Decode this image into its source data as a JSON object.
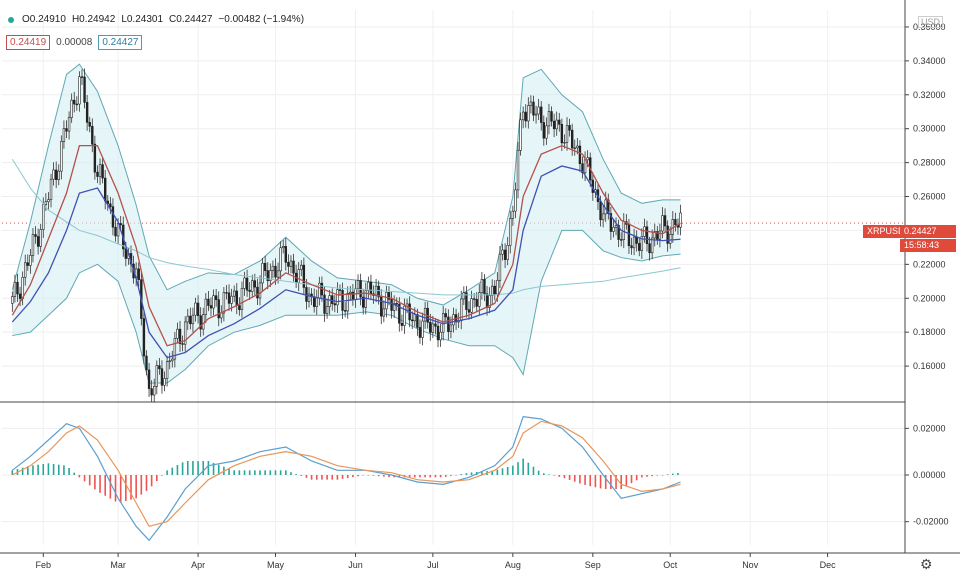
{
  "header": {
    "open": "O0.24910",
    "high": "H0.24942",
    "low": "L0.24301",
    "close": "C0.24427",
    "change": "−0.00482 (−1.94%)",
    "ma_red": "0.24419",
    "ma_mid": "0.00008",
    "ma_blue": "0.24427",
    "currency": "USD"
  },
  "price_tag": {
    "symbol": "XRPUSD",
    "price": "0.24427",
    "countdown": "15:58:43"
  },
  "colors": {
    "up": "#26a69a",
    "down": "#ef5350",
    "ma_red": "#b5504a",
    "ma_blue": "#3f51b5",
    "band": "#5fa8b5",
    "band_fill": "#d6eef2"
  },
  "chart_data": [
    {
      "type": "candlestick",
      "title": "",
      "x": [
        "2020-01-20",
        "2020-01-27",
        "2020-02-03",
        "2020-02-10",
        "2020-02-15",
        "2020-02-22",
        "2020-03-01",
        "2020-03-08",
        "2020-03-13",
        "2020-03-20",
        "2020-03-27",
        "2020-04-05",
        "2020-04-15",
        "2020-04-25",
        "2020-05-05",
        "2020-05-15",
        "2020-05-25",
        "2020-06-05",
        "2020-06-15",
        "2020-06-25",
        "2020-07-05",
        "2020-07-15",
        "2020-07-25",
        "2020-08-01",
        "2020-08-05",
        "2020-08-12",
        "2020-08-20",
        "2020-08-28",
        "2020-09-05",
        "2020-09-12",
        "2020-09-20",
        "2020-09-28",
        "2020-10-05"
      ],
      "series": [
        {
          "name": "price",
          "values": [
            0.197,
            0.225,
            0.26,
            0.3,
            0.33,
            0.275,
            0.238,
            0.215,
            0.145,
            0.16,
            0.185,
            0.195,
            0.2,
            0.21,
            0.225,
            0.2,
            0.198,
            0.205,
            0.195,
            0.186,
            0.182,
            0.198,
            0.205,
            0.25,
            0.315,
            0.305,
            0.3,
            0.282,
            0.25,
            0.238,
            0.232,
            0.24,
            0.2443
          ]
        },
        {
          "name": "ma_red",
          "values": [
            0.19,
            0.208,
            0.235,
            0.262,
            0.29,
            0.29,
            0.262,
            0.23,
            0.195,
            0.172,
            0.175,
            0.188,
            0.195,
            0.203,
            0.215,
            0.208,
            0.202,
            0.203,
            0.2,
            0.192,
            0.186,
            0.19,
            0.197,
            0.22,
            0.26,
            0.285,
            0.29,
            0.285,
            0.262,
            0.246,
            0.24,
            0.238,
            0.2442
          ]
        },
        {
          "name": "ma_blue",
          "values": [
            0.186,
            0.198,
            0.215,
            0.24,
            0.262,
            0.265,
            0.245,
            0.212,
            0.18,
            0.165,
            0.168,
            0.178,
            0.185,
            0.194,
            0.205,
            0.201,
            0.198,
            0.2,
            0.197,
            0.19,
            0.185,
            0.188,
            0.193,
            0.205,
            0.24,
            0.272,
            0.278,
            0.275,
            0.255,
            0.24,
            0.235,
            0.234,
            0.2348
          ]
        },
        {
          "name": "upper_band",
          "values": [
            0.205,
            0.245,
            0.29,
            0.332,
            0.338,
            0.322,
            0.29,
            0.255,
            0.225,
            0.205,
            0.21,
            0.215,
            0.214,
            0.222,
            0.236,
            0.222,
            0.212,
            0.21,
            0.208,
            0.2,
            0.196,
            0.205,
            0.215,
            0.26,
            0.33,
            0.335,
            0.32,
            0.31,
            0.282,
            0.262,
            0.256,
            0.258,
            0.258
          ]
        },
        {
          "name": "lower_band",
          "values": [
            0.178,
            0.18,
            0.19,
            0.2,
            0.215,
            0.22,
            0.21,
            0.18,
            0.15,
            0.15,
            0.158,
            0.172,
            0.18,
            0.184,
            0.19,
            0.19,
            0.19,
            0.192,
            0.19,
            0.182,
            0.176,
            0.172,
            0.172,
            0.165,
            0.155,
            0.21,
            0.24,
            0.24,
            0.228,
            0.224,
            0.222,
            0.225,
            0.226
          ]
        },
        {
          "name": "long_ma",
          "values": [
            0.282,
            0.265,
            0.252,
            0.245,
            0.24,
            0.237,
            0.232,
            0.228,
            0.224,
            0.221,
            0.219,
            0.217,
            0.214,
            0.212,
            0.21,
            0.208,
            0.206,
            0.205,
            0.204,
            0.203,
            0.202,
            0.202,
            0.202,
            0.203,
            0.205,
            0.207,
            0.208,
            0.209,
            0.21,
            0.212,
            0.214,
            0.216,
            0.218
          ]
        }
      ],
      "ylim": [
        0.14,
        0.37
      ],
      "y_ticks": [
        "0.36000",
        "0.34000",
        "0.32000",
        "0.30000",
        "0.28000",
        "0.26000",
        "0.24000",
        "0.22000",
        "0.20000",
        "0.18000",
        "0.16000"
      ],
      "y_tick_values": [
        0.36,
        0.34,
        0.32,
        0.3,
        0.28,
        0.26,
        0.24,
        0.22,
        0.2,
        0.18,
        0.16
      ],
      "grid": true
    },
    {
      "type": "macd",
      "title": "",
      "series": [
        {
          "name": "macd",
          "values": [
            0.002,
            0.008,
            0.015,
            0.022,
            0.02,
            0.008,
            -0.01,
            -0.022,
            -0.028,
            -0.018,
            -0.006,
            0.004,
            0.006,
            0.01,
            0.012,
            0.006,
            0.002,
            0.002,
            0.0,
            -0.003,
            -0.004,
            -0.001,
            0.004,
            0.012,
            0.025,
            0.024,
            0.02,
            0.012,
            0.0,
            -0.01,
            -0.008,
            -0.006,
            -0.003
          ]
        },
        {
          "name": "signal",
          "values": [
            0.0,
            0.004,
            0.01,
            0.018,
            0.021,
            0.015,
            0.002,
            -0.012,
            -0.022,
            -0.02,
            -0.012,
            -0.002,
            0.004,
            0.008,
            0.01,
            0.008,
            0.004,
            0.002,
            0.001,
            -0.002,
            -0.003,
            -0.002,
            0.002,
            0.008,
            0.018,
            0.023,
            0.021,
            0.016,
            0.006,
            -0.004,
            -0.007,
            -0.006,
            -0.004
          ]
        },
        {
          "name": "histogram",
          "values": [
            0.002,
            0.004,
            0.005,
            0.004,
            -0.001,
            -0.007,
            -0.012,
            -0.01,
            -0.006,
            0.002,
            0.006,
            0.006,
            0.002,
            0.002,
            0.002,
            -0.002,
            -0.002,
            0.0,
            -0.001,
            -0.001,
            -0.001,
            0.001,
            0.002,
            0.004,
            0.007,
            0.001,
            -0.001,
            -0.004,
            -0.006,
            -0.006,
            -0.001,
            0.0,
            0.001
          ]
        }
      ],
      "ylim": [
        -0.03,
        0.03
      ],
      "y_ticks": [
        "0.02000",
        "0.00000",
        "-0.02000"
      ],
      "y_tick_values": [
        0.02,
        0.0,
        -0.02
      ]
    }
  ],
  "x_axis": {
    "labels": [
      "Feb",
      "Mar",
      "Apr",
      "May",
      "Jun",
      "Jul",
      "Aug",
      "Sep",
      "Oct",
      "Nov",
      "Dec"
    ],
    "dates": [
      "2020-02-01",
      "2020-03-01",
      "2020-04-01",
      "2020-05-01",
      "2020-06-01",
      "2020-07-01",
      "2020-08-01",
      "2020-09-01",
      "2020-10-01",
      "2020-11-01",
      "2020-12-01"
    ]
  }
}
